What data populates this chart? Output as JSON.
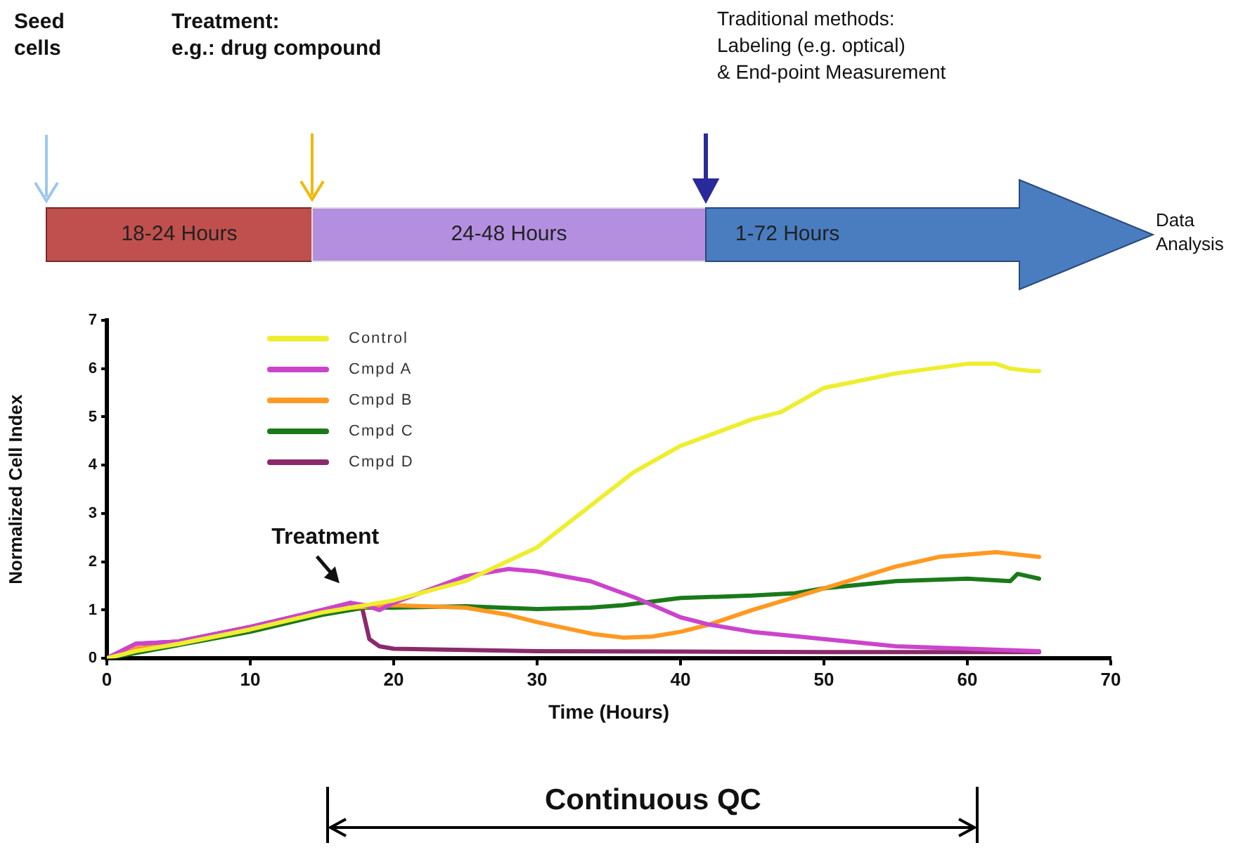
{
  "chart_data": {
    "type": "line",
    "xlabel": "Time (Hours)",
    "ylabel": "Normalized Cell Index",
    "xlim": [
      0,
      70
    ],
    "xticks": [
      0,
      10,
      20,
      30,
      40,
      50,
      60,
      70
    ],
    "ylim": [
      0,
      7
    ],
    "yticks": [
      0,
      1,
      2,
      3,
      4,
      5,
      6,
      7
    ],
    "grid": false,
    "legend": "top left",
    "marker": "none",
    "line_style": "solid",
    "series": [
      {
        "name": "Control",
        "color": "#eeee30",
        "x": [
          0,
          2,
          5,
          10,
          15,
          17,
          20,
          25,
          30,
          36.7,
          40,
          45,
          47,
          50,
          55,
          60,
          62,
          63,
          64.5,
          65
        ],
        "values": [
          0,
          0.15,
          0.3,
          0.6,
          0.95,
          1.05,
          1.2,
          1.6,
          2.3,
          3.85,
          4.4,
          4.95,
          5.1,
          5.6,
          5.9,
          6.1,
          6.1,
          6.0,
          5.95,
          5.95
        ]
      },
      {
        "name": "Cmpd A",
        "color": "#cc44cc",
        "x": [
          0,
          2,
          5,
          10,
          15,
          17,
          18,
          19,
          20,
          25,
          28,
          30,
          33.7,
          36.9,
          40,
          42,
          45,
          50,
          55,
          60,
          65
        ],
        "values": [
          0,
          0.3,
          0.35,
          0.65,
          1.0,
          1.15,
          1.1,
          1.0,
          1.15,
          1.7,
          1.85,
          1.8,
          1.6,
          1.25,
          0.85,
          0.7,
          0.55,
          0.4,
          0.25,
          0.2,
          0.15
        ]
      },
      {
        "name": "Cmpd B",
        "color": "#ff9922",
        "x": [
          0,
          2,
          5,
          10,
          15,
          17,
          20,
          25,
          28,
          30,
          34,
          36,
          38,
          40,
          42,
          45,
          50,
          55,
          58,
          62,
          65
        ],
        "values": [
          0,
          0.2,
          0.3,
          0.6,
          0.95,
          1.05,
          1.1,
          1.05,
          0.9,
          0.75,
          0.5,
          0.43,
          0.45,
          0.55,
          0.7,
          1.0,
          1.45,
          1.9,
          2.1,
          2.2,
          2.1
        ]
      },
      {
        "name": "Cmpd C",
        "color": "#1a7a1a",
        "x": [
          0,
          10,
          15,
          18,
          20,
          25,
          30,
          33.7,
          36,
          40,
          45,
          48,
          50,
          55,
          60,
          63,
          63.5,
          65
        ],
        "values": [
          0,
          0.55,
          0.9,
          1.05,
          1.05,
          1.08,
          1.02,
          1.05,
          1.1,
          1.25,
          1.3,
          1.35,
          1.45,
          1.6,
          1.65,
          1.6,
          1.75,
          1.65
        ]
      },
      {
        "name": "Cmpd D",
        "color": "#8b2a6a",
        "x": [
          0,
          2,
          5,
          10,
          15,
          17,
          17.8,
          18.3,
          19,
          20,
          30,
          40,
          50,
          65
        ],
        "values": [
          0,
          0.3,
          0.35,
          0.65,
          1.0,
          1.15,
          1.05,
          0.4,
          0.25,
          0.2,
          0.15,
          0.14,
          0.13,
          0.13
        ]
      }
    ],
    "annotations": [
      "Seed\ncells",
      "Treatment:\ne.g.: drug compound",
      "Traditional methods:\nLabeling (e.g. optical)\n& End-point Measurement",
      "18-24 Hours",
      "24-48 Hours",
      "1-72 Hours",
      "Data\nAnalysis",
      {
        "text": "Treatment",
        "x": 17,
        "y": 1.15
      },
      "Continuous QC"
    ]
  }
}
